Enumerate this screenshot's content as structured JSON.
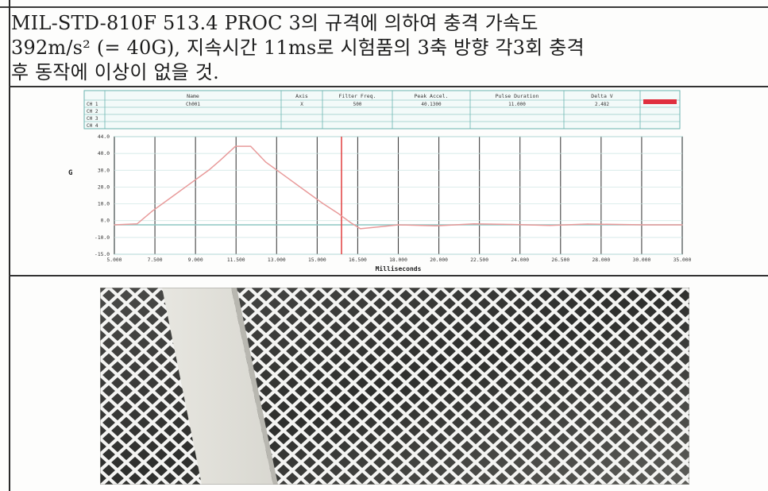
{
  "spec": {
    "line1": "MIL-STD-810F 513.4 PROC 3의 규격에 의하여 충격 가속도",
    "line2": "392m/s² (= 40G), 지속시간 11ms로 시험품의 3축 방향 각3회 충격",
    "line3": "후 동작에 이상이 없을 것."
  },
  "colors": {
    "ink": "#1c1c1c",
    "trace_pulse": "#e89a9a",
    "trace_limit": "#8fc7c4",
    "marker": "#e24a4a",
    "legend_swatch": "#e0303f",
    "chart_frame": "#6ab4b0"
  },
  "chart_data": {
    "type": "line",
    "legend_table": {
      "headers": [
        "Name",
        "Axis",
        "Filter Freq.",
        "Peak Accel.",
        "Pulse Duration",
        "Delta V"
      ],
      "rows": [
        {
          "channel": "CH 1",
          "name": "Ch001",
          "axis": "X",
          "filter": "500",
          "peak": "40.1300",
          "duration": "11.000",
          "delta_v": "2.482"
        },
        {
          "channel": "CH 2",
          "name": "",
          "axis": "",
          "filter": "",
          "peak": "",
          "duration": "",
          "delta_v": ""
        },
        {
          "channel": "CH 3",
          "name": "",
          "axis": "",
          "filter": "",
          "peak": "",
          "duration": "",
          "delta_v": ""
        },
        {
          "channel": "CH 4",
          "name": "",
          "axis": "",
          "filter": "",
          "peak": "",
          "duration": "",
          "delta_v": ""
        }
      ]
    },
    "ylabel": "G",
    "xlabel": "Milliseconds",
    "xlim": [
      5.0,
      35.0
    ],
    "ylim": [
      -15.0,
      45.0
    ],
    "y_ticks": [
      "44.0",
      "40.0",
      "30.0",
      "20.0",
      "10.0",
      "0.0",
      "-10.0",
      "-15.0"
    ],
    "x_ticks": [
      "5.000",
      "7.500",
      "9.000",
      "11.500",
      "13.000",
      "15.000",
      "16.500",
      "18.000",
      "20.000",
      "22.500",
      "24.000",
      "26.500",
      "28.000",
      "30.000",
      "35.000"
    ],
    "series": [
      {
        "name": "Ch001",
        "x": [
          5.0,
          6.2,
          7.0,
          8.0,
          9.0,
          10.0,
          10.6,
          11.4,
          12.2,
          13.0,
          14.0,
          15.0,
          16.0,
          16.8,
          17.5,
          18.0,
          19.0,
          20.0,
          22.0,
          24.0,
          26.0,
          28.0,
          30.0,
          33.0,
          35.0
        ],
        "y": [
          0.0,
          0.5,
          7.0,
          14.0,
          21.0,
          28.0,
          33.0,
          40.1,
          40.1,
          32.0,
          25.0,
          18.0,
          11.0,
          6.0,
          1.0,
          -2.0,
          -1.0,
          0.0,
          -0.5,
          0.5,
          0.2,
          -0.3,
          0.4,
          0.0,
          0.0
        ]
      }
    ],
    "marker_x": 17.0,
    "grid": true
  },
  "photo": {
    "subject": "white diamond mesh screen with vertical support strip"
  }
}
